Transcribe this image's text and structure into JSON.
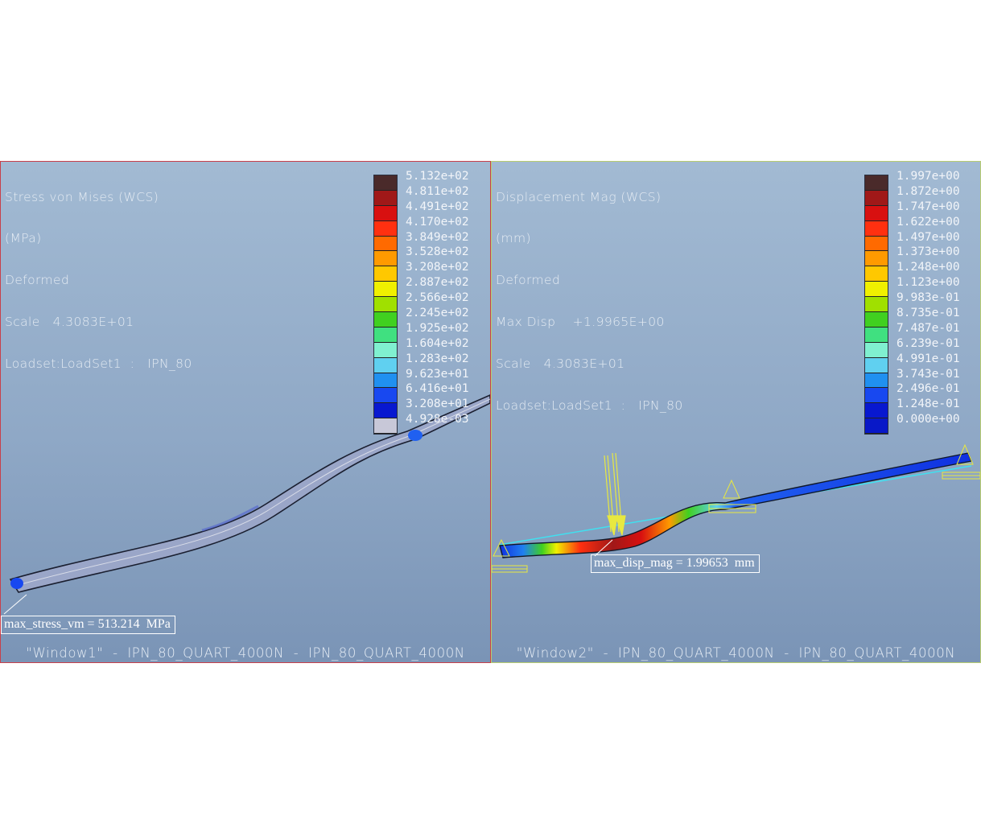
{
  "window1": {
    "header_lines": [
      "Stress von Mises (WCS)",
      "(MPa)",
      "Deformed",
      "Scale   4.3083E+01",
      "Loadset:LoadSet1  :   IPN_80"
    ],
    "legend_labels": [
      "5.132e+02",
      "4.811e+02",
      "4.491e+02",
      "4.170e+02",
      "3.849e+02",
      "3.528e+02",
      "3.208e+02",
      "2.887e+02",
      "2.566e+02",
      "2.245e+02",
      "1.925e+02",
      "1.604e+02",
      "1.283e+02",
      "9.623e+01",
      "6.416e+01",
      "3.208e+01",
      "4.928e-03"
    ],
    "max_label": "max_stress_vm = 513.214  MPa",
    "footer": "\"Window1\"  -  IPN_80_QUART_4000N  -  IPN_80_QUART_4000N"
  },
  "window2": {
    "header_lines": [
      "Displacement Mag (WCS)",
      "(mm)",
      "Deformed",
      "Max Disp    +1.9965E+00",
      "Scale   4.3083E+01",
      "Loadset:LoadSet1  :   IPN_80"
    ],
    "legend_labels": [
      "1.997e+00",
      "1.872e+00",
      "1.747e+00",
      "1.622e+00",
      "1.497e+00",
      "1.373e+00",
      "1.248e+00",
      "1.123e+00",
      "9.983e-01",
      "8.735e-01",
      "7.487e-01",
      "6.239e-01",
      "4.991e-01",
      "3.743e-01",
      "2.496e-01",
      "1.248e-01",
      "0.000e+00"
    ],
    "max_label": "max_disp_mag = 1.99653  mm",
    "footer": "\"Window2\"  -  IPN_80_QUART_4000N  -  IPN_80_QUART_4000N"
  },
  "colors": {
    "legend_swatches": [
      "#4a2a2a",
      "#a01818",
      "#d81010",
      "#ff3010",
      "#ff6a00",
      "#ff9a00",
      "#ffc800",
      "#f0f000",
      "#a0e000",
      "#40d020",
      "#40e080",
      "#80f0d0",
      "#60d0f0",
      "#2090f0",
      "#1848f0",
      "#0818d0",
      "#c8c8d8"
    ],
    "legend_swatches_w2": [
      "#4a2a2a",
      "#a01818",
      "#d81010",
      "#ff3010",
      "#ff6a00",
      "#ff9a00",
      "#ffc800",
      "#f0f000",
      "#a0e000",
      "#40d020",
      "#40e080",
      "#80f0d0",
      "#60d0f0",
      "#2090f0",
      "#1848f0",
      "#0818d0",
      "#0818c8"
    ],
    "window1_border": "#c8404a",
    "window2_border": "#b8cc70"
  }
}
